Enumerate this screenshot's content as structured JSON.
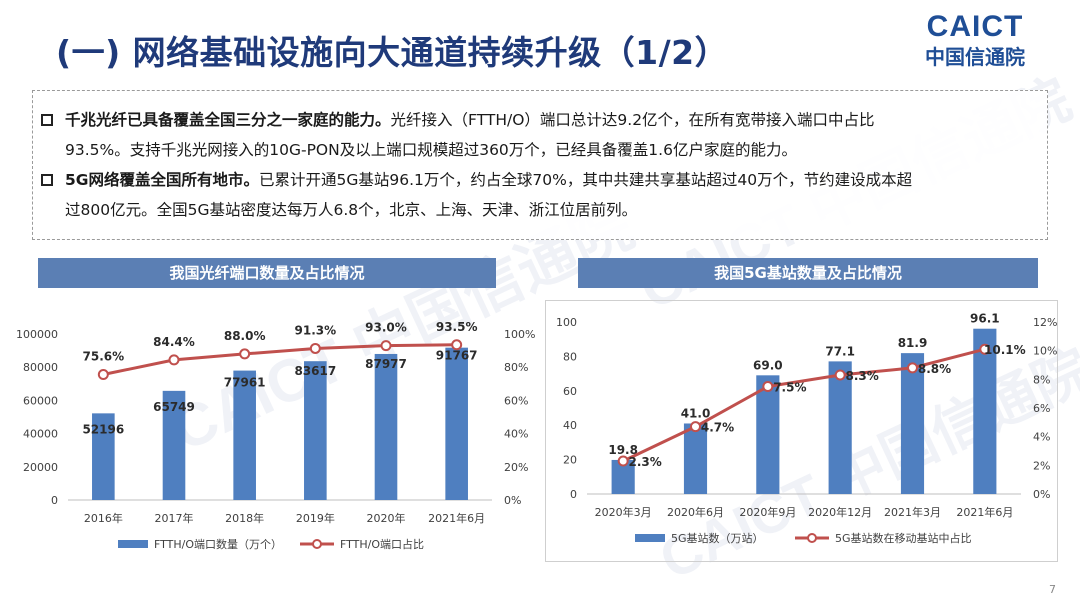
{
  "page": {
    "title": "(一) 网络基础设施向大通道持续升级（1/2）",
    "logo_en": "CAICT",
    "logo_cn": "中国信通院",
    "page_number": "7",
    "watermark_en": "CAICT",
    "watermark_cn": "中国信通院"
  },
  "bullets": [
    {
      "bold": "千兆光纤已具备覆盖全国三分之一家庭的能力。",
      "line1_rest": "光纤接入（FTTH/O）端口总计达9.2亿个，在所有宽带接入端口中占比",
      "line2": "93.5%。支持千兆光网接入的10G-PON及以上端口规模超过360万个，已经具备覆盖1.6亿户家庭的能力。"
    },
    {
      "bold": "5G网络覆盖全国所有地市。",
      "line1_rest": "已累计开通5G基站96.1万个，约占全球70%，其中共建共享基站超过40万个，节约建设成本超",
      "line2": "过800亿元。全国5G基站密度达每万人6.8个，北京、上海、天津、浙江位居前列。"
    }
  ],
  "chart_data": [
    {
      "type": "bar",
      "title": "我国光纤端口数量及占比情况",
      "categories": [
        "2016年",
        "2017年",
        "2018年",
        "2019年",
        "2020年",
        "2021年6月"
      ],
      "series": [
        {
          "name": "FTTH/O端口数量（万个）",
          "type": "bar",
          "axis": "left",
          "values": [
            52196,
            65749,
            77961,
            83617,
            87977,
            91767
          ],
          "labels": [
            "52196",
            "65749",
            "77961",
            "83617",
            "87977",
            "91767"
          ]
        },
        {
          "name": "FTTH/O端口占比",
          "type": "line",
          "axis": "right",
          "values": [
            75.6,
            84.4,
            88.0,
            91.3,
            93.0,
            93.5
          ],
          "labels": [
            "75.6%",
            "84.4%",
            "88.0%",
            "91.3%",
            "93.0%",
            "93.5%"
          ]
        }
      ],
      "y_left": {
        "range": [
          0,
          100000
        ],
        "ticks": [
          "0",
          "20000",
          "40000",
          "60000",
          "80000",
          "100000"
        ]
      },
      "y_right": {
        "range": [
          0,
          100
        ],
        "ticks": [
          "0%",
          "20%",
          "40%",
          "60%",
          "80%",
          "100%"
        ]
      },
      "legend": "bottom",
      "colors": {
        "bar": "#4f7fc0",
        "line": "#c0504d"
      }
    },
    {
      "type": "bar",
      "title": "我国5G基站数量及占比情况",
      "categories": [
        "2020年3月",
        "2020年6月",
        "2020年9月",
        "2020年12月",
        "2021年3月",
        "2021年6月"
      ],
      "series": [
        {
          "name": "5G基站数（万站）",
          "type": "bar",
          "axis": "left",
          "values": [
            19.8,
            41.0,
            69.0,
            77.1,
            81.9,
            96.1
          ],
          "labels": [
            "19.8",
            "41.0",
            "69.0",
            "77.1",
            "81.9",
            "96.1"
          ]
        },
        {
          "name": "5G基站数在移动基站中占比",
          "type": "line",
          "axis": "right",
          "values": [
            2.3,
            4.7,
            7.5,
            8.3,
            8.8,
            10.1
          ],
          "labels": [
            "2.3%",
            "4.7%",
            "7.5%",
            "8.3%",
            "8.8%",
            "10.1%"
          ]
        }
      ],
      "y_left": {
        "range": [
          0,
          100
        ],
        "ticks": [
          "0",
          "20",
          "40",
          "60",
          "80",
          "100"
        ]
      },
      "y_right": {
        "range": [
          0,
          12
        ],
        "ticks": [
          "0%",
          "2%",
          "4%",
          "6%",
          "8%",
          "10%",
          "12%"
        ]
      },
      "legend": "bottom",
      "colors": {
        "bar": "#4f7fc0",
        "line": "#c0504d"
      }
    }
  ]
}
